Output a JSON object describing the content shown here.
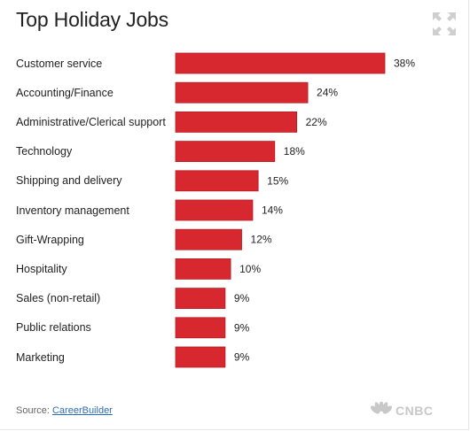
{
  "title": "Top Holiday Jobs",
  "source": {
    "prefix": "Source:",
    "link_text": "CareerBuilder"
  },
  "brand": {
    "name": "CNBC"
  },
  "icons": {
    "expand": "expand-arrows-icon",
    "brand_logo": "peacock-icon"
  },
  "colors": {
    "bar": "#d7282f",
    "bar_stroke": "#b31f25"
  },
  "chart_data": {
    "type": "bar",
    "orientation": "horizontal",
    "title": "Top Holiday Jobs",
    "categories": [
      "Customer service",
      "Accounting/Finance",
      "Administrative/Clerical support",
      "Technology",
      "Shipping and delivery",
      "Inventory management",
      "Gift-Wrapping",
      "Hospitality",
      "Sales (non-retail)",
      "Public relations",
      "Marketing"
    ],
    "values": [
      38,
      24,
      22,
      18,
      15,
      14,
      12,
      10,
      9,
      9,
      9
    ],
    "value_labels": [
      "38%",
      "24%",
      "22%",
      "18%",
      "15%",
      "14%",
      "12%",
      "10%",
      "9%",
      "9%",
      "9%"
    ],
    "xlim": [
      0,
      38
    ],
    "grid": false,
    "legend": "none"
  }
}
